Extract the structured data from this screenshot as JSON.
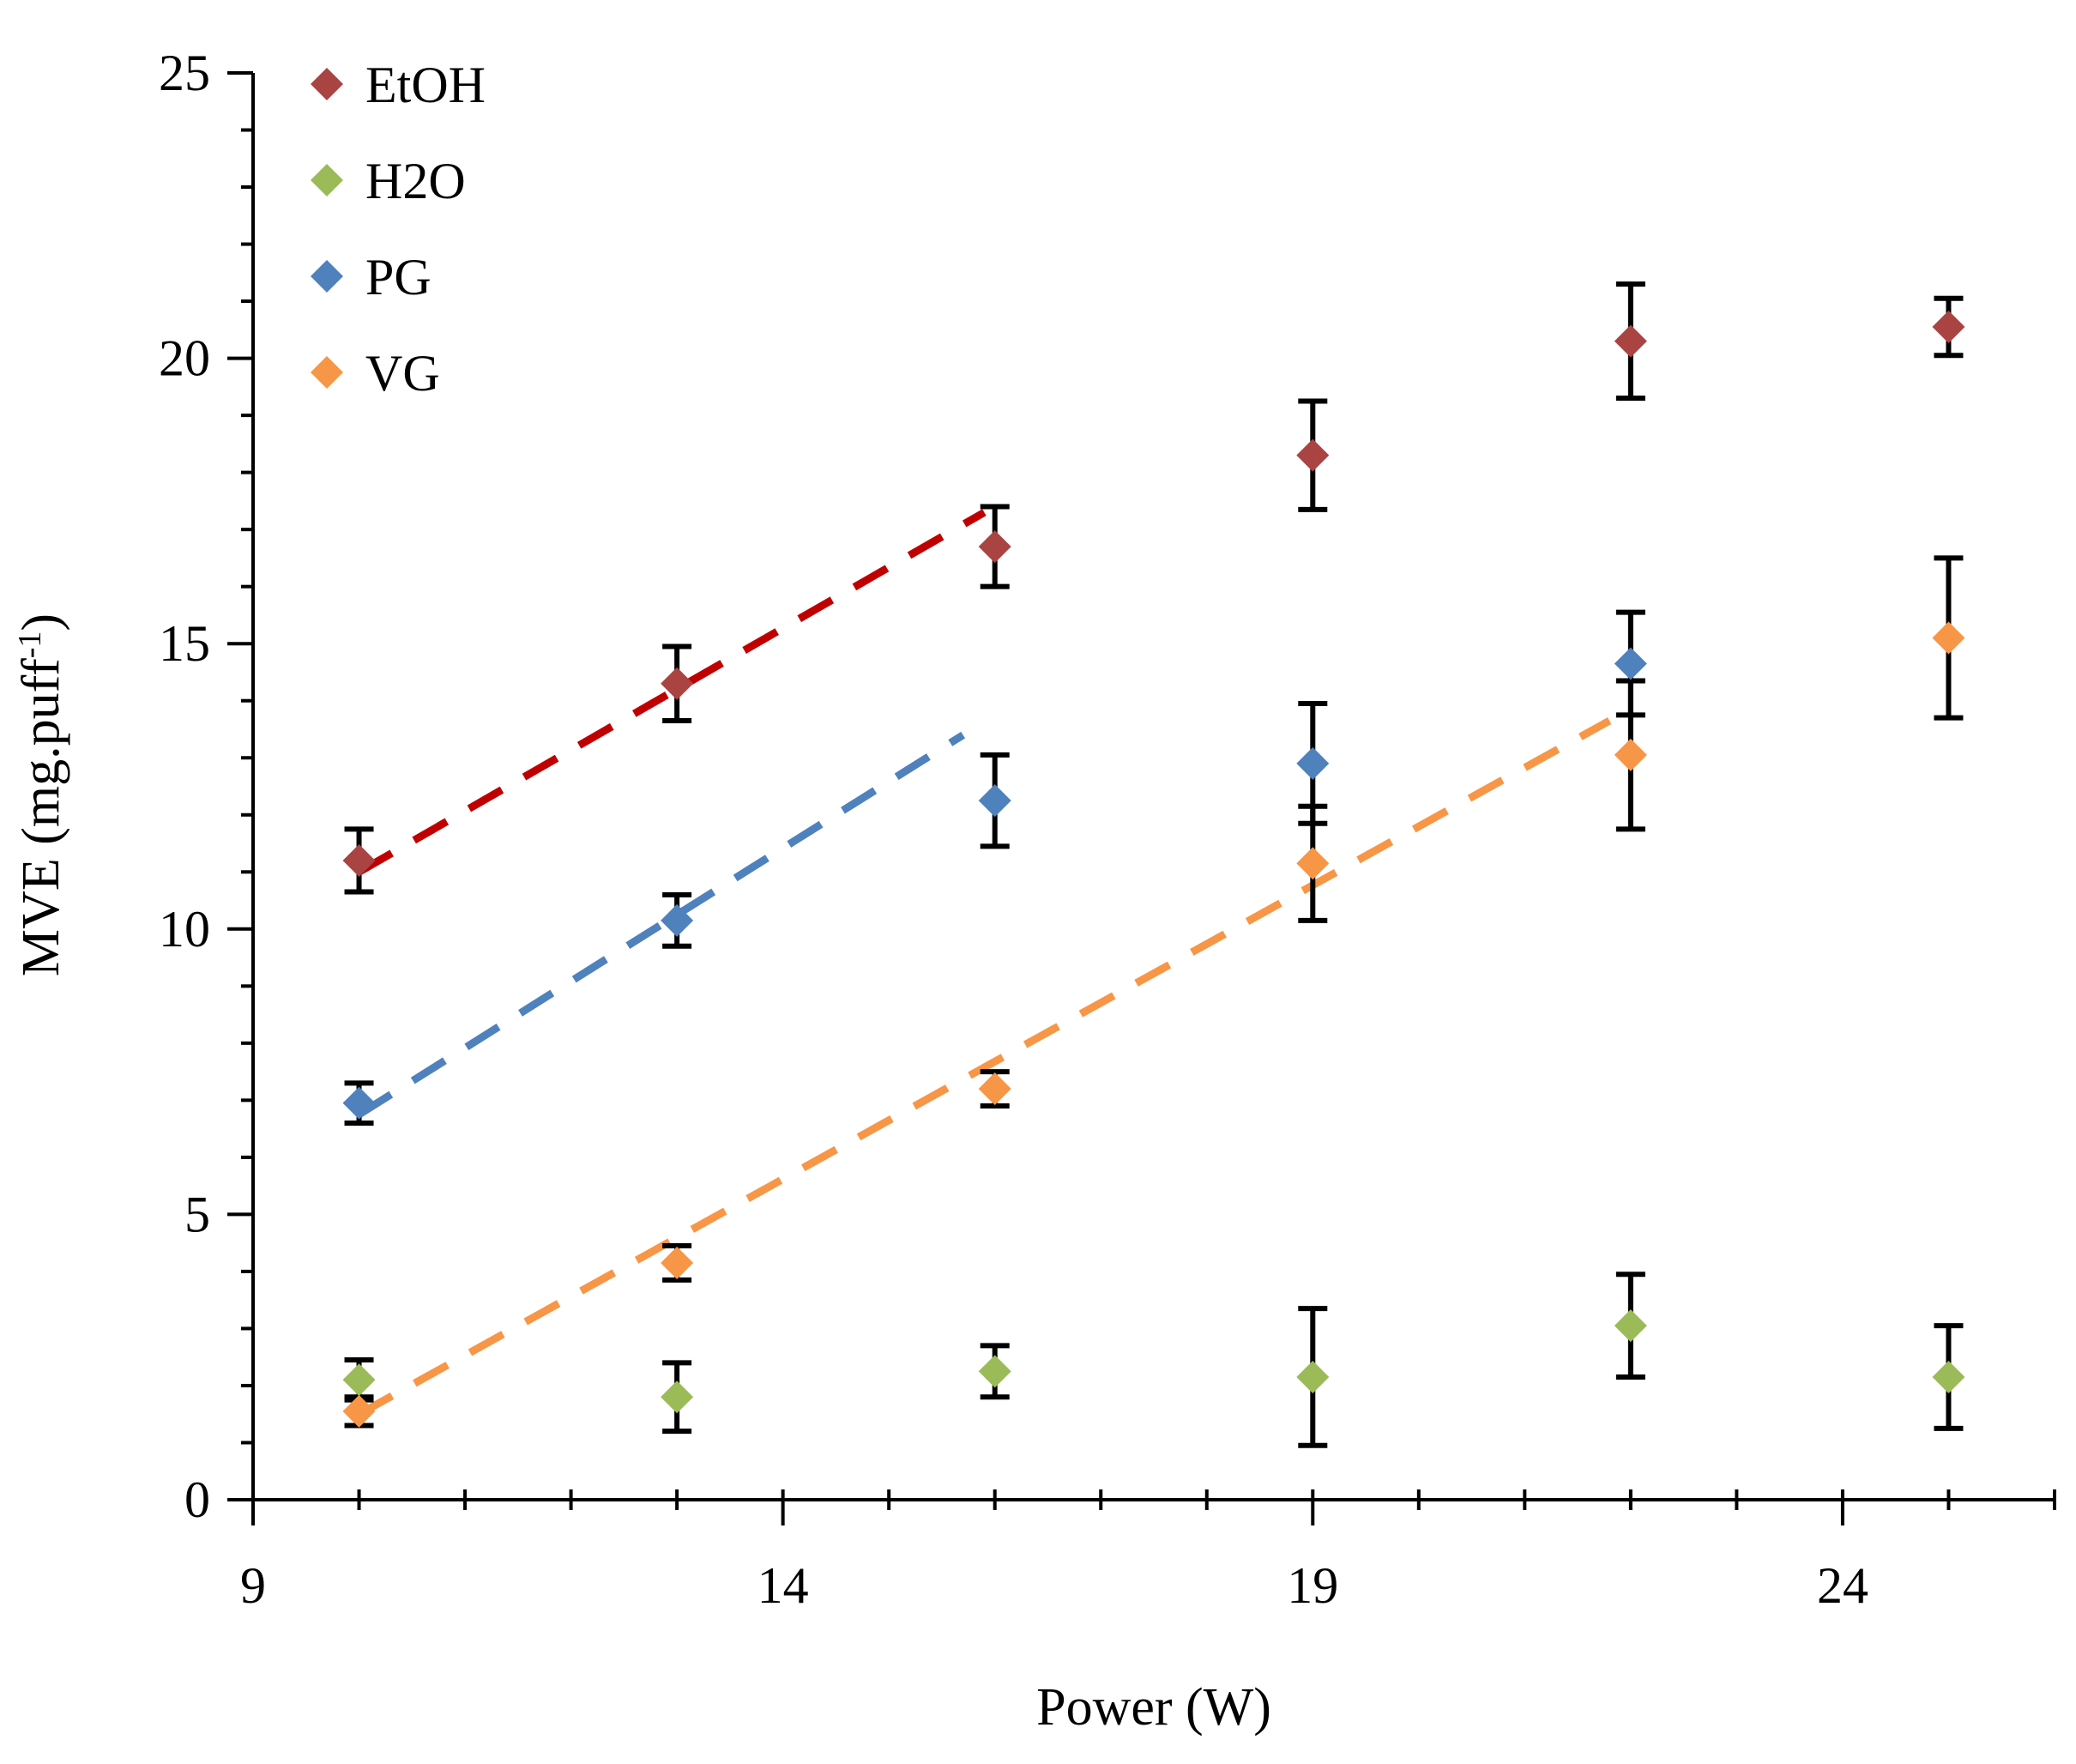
{
  "chart_data": {
    "type": "scatter",
    "xlabel": "Power (W)",
    "ylabel": "MVE  (mg.puff",
    "ylabel_sup": "-1",
    "ylabel_tail": ")",
    "xlim": [
      9,
      26
    ],
    "ylim": [
      0,
      25
    ],
    "xticks": [
      9,
      14,
      19,
      24
    ],
    "yticks": [
      0,
      5,
      10,
      15,
      20,
      25
    ],
    "x_minor_step": 1,
    "y_minor_step": 1,
    "legend_position": "top-left",
    "grid": false,
    "series": [
      {
        "name": "EtOH",
        "color": "#a94442",
        "x": [
          10,
          13,
          16,
          19,
          22,
          25
        ],
        "y": [
          11.2,
          14.3,
          16.7,
          18.3,
          20.3,
          20.55
        ],
        "err": [
          0.55,
          0.65,
          0.7,
          0.95,
          1.0,
          0.5
        ],
        "trend": {
          "color": "#c00000",
          "x": [
            10,
            15.9
          ],
          "y": [
            11.0,
            17.3
          ]
        }
      },
      {
        "name": "H2O",
        "color": "#9bbb59",
        "x": [
          10,
          13,
          16,
          19,
          22,
          25
        ],
        "y": [
          2.1,
          1.8,
          2.25,
          2.15,
          3.05,
          2.15
        ],
        "err": [
          0.35,
          0.6,
          0.45,
          1.2,
          0.9,
          0.9
        ],
        "trend": null
      },
      {
        "name": "PG",
        "color": "#4f81bd",
        "x": [
          10,
          13,
          16,
          19,
          22
        ],
        "y": [
          6.95,
          10.15,
          12.25,
          12.9,
          14.65
        ],
        "err": [
          0.35,
          0.45,
          0.8,
          1.05,
          0.9
        ],
        "trend": {
          "color": "#4f81bd",
          "x": [
            10,
            15.7
          ],
          "y": [
            6.75,
            13.4
          ]
        }
      },
      {
        "name": "VG",
        "color": "#f79646",
        "x": [
          10,
          13,
          16,
          19,
          22,
          25
        ],
        "y": [
          1.55,
          4.15,
          7.2,
          11.15,
          13.05,
          15.1
        ],
        "err": [
          0.25,
          0.3,
          0.3,
          1.0,
          1.3,
          1.4
        ],
        "trend": {
          "color": "#f79646",
          "x": [
            10,
            21.8
          ],
          "y": [
            1.5,
            13.65
          ]
        }
      }
    ]
  }
}
